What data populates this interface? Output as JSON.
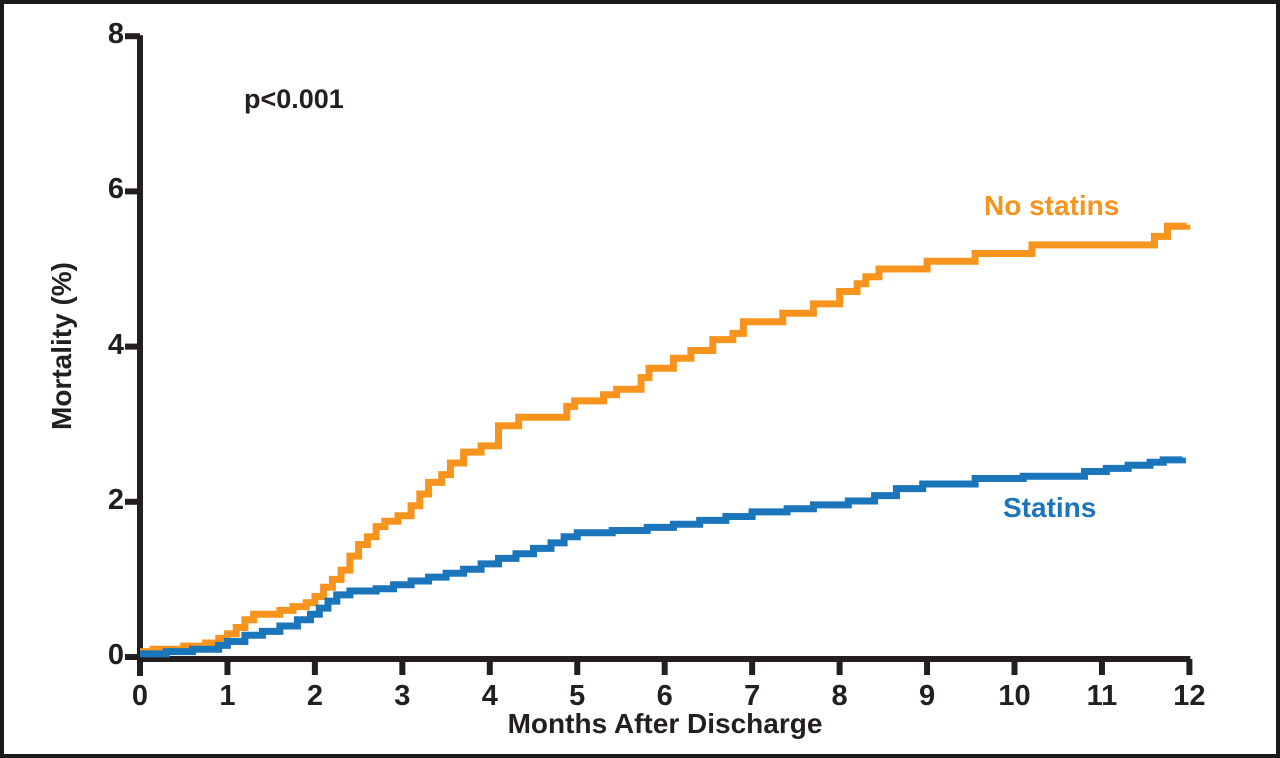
{
  "figure": {
    "p_value": "p<0.001",
    "x_axis_title": "Months After Discharge",
    "y_axis_title": "Mortality (%)"
  },
  "colors": {
    "no_statins": "#F7941E",
    "statins": "#1B75BB",
    "axis": "#231F20",
    "frame": "#1A1A1A",
    "background": "#FFFFFF"
  },
  "chart_data": {
    "type": "line",
    "subtype": "step-after",
    "title": "",
    "xlabel": "Months After Discharge",
    "ylabel": "Mortality (%)",
    "xlim": [
      0,
      12
    ],
    "ylim": [
      0,
      8
    ],
    "x_ticks": [
      "0",
      "1",
      "2",
      "3",
      "4",
      "5",
      "6",
      "7",
      "8",
      "9",
      "10",
      "11",
      "12"
    ],
    "x_tick_values": [
      0,
      1,
      2,
      3,
      4,
      5,
      6,
      7,
      8,
      9,
      10,
      11,
      12
    ],
    "y_ticks": [
      "0",
      "2",
      "4",
      "6",
      "8"
    ],
    "y_tick_values": [
      0,
      2,
      4,
      6,
      8
    ],
    "grid": false,
    "annotation": "p<0.001",
    "legend_position": "inline-right",
    "series": [
      {
        "name": "No statins",
        "color": "#F7941E",
        "points": [
          [
            0,
            0.07
          ],
          [
            0.15,
            0.1
          ],
          [
            0.5,
            0.14
          ],
          [
            0.75,
            0.18
          ],
          [
            0.9,
            0.24
          ],
          [
            1.0,
            0.3
          ],
          [
            1.1,
            0.38
          ],
          [
            1.2,
            0.48
          ],
          [
            1.3,
            0.55
          ],
          [
            1.6,
            0.6
          ],
          [
            1.75,
            0.65
          ],
          [
            1.9,
            0.7
          ],
          [
            2.0,
            0.78
          ],
          [
            2.1,
            0.9
          ],
          [
            2.2,
            1.0
          ],
          [
            2.3,
            1.12
          ],
          [
            2.4,
            1.3
          ],
          [
            2.5,
            1.45
          ],
          [
            2.6,
            1.55
          ],
          [
            2.7,
            1.68
          ],
          [
            2.8,
            1.75
          ],
          [
            2.95,
            1.82
          ],
          [
            3.1,
            1.95
          ],
          [
            3.2,
            2.1
          ],
          [
            3.3,
            2.25
          ],
          [
            3.45,
            2.35
          ],
          [
            3.55,
            2.5
          ],
          [
            3.7,
            2.64
          ],
          [
            3.9,
            2.72
          ],
          [
            4.1,
            2.98
          ],
          [
            4.33,
            3.09
          ],
          [
            4.88,
            3.23
          ],
          [
            4.97,
            3.3
          ],
          [
            5.3,
            3.38
          ],
          [
            5.45,
            3.45
          ],
          [
            5.73,
            3.6
          ],
          [
            5.82,
            3.72
          ],
          [
            6.1,
            3.85
          ],
          [
            6.3,
            3.95
          ],
          [
            6.55,
            4.09
          ],
          [
            6.78,
            4.17
          ],
          [
            6.9,
            4.32
          ],
          [
            7.35,
            4.43
          ],
          [
            7.7,
            4.55
          ],
          [
            8.0,
            4.71
          ],
          [
            8.2,
            4.81
          ],
          [
            8.3,
            4.9
          ],
          [
            8.45,
            5.0
          ],
          [
            9.0,
            5.1
          ],
          [
            9.55,
            5.2
          ],
          [
            10.2,
            5.31
          ],
          [
            11.6,
            5.42
          ],
          [
            11.75,
            5.55
          ],
          [
            11.97,
            5.57
          ]
        ]
      },
      {
        "name": "Statins",
        "color": "#1B75BB",
        "points": [
          [
            0,
            0.04
          ],
          [
            0.3,
            0.07
          ],
          [
            0.6,
            0.1
          ],
          [
            0.9,
            0.15
          ],
          [
            1.0,
            0.2
          ],
          [
            1.2,
            0.28
          ],
          [
            1.4,
            0.33
          ],
          [
            1.6,
            0.4
          ],
          [
            1.8,
            0.48
          ],
          [
            1.95,
            0.55
          ],
          [
            2.05,
            0.63
          ],
          [
            2.15,
            0.72
          ],
          [
            2.25,
            0.8
          ],
          [
            2.4,
            0.85
          ],
          [
            2.7,
            0.88
          ],
          [
            2.9,
            0.93
          ],
          [
            3.1,
            0.98
          ],
          [
            3.3,
            1.03
          ],
          [
            3.5,
            1.08
          ],
          [
            3.7,
            1.13
          ],
          [
            3.9,
            1.2
          ],
          [
            4.1,
            1.27
          ],
          [
            4.3,
            1.33
          ],
          [
            4.5,
            1.4
          ],
          [
            4.7,
            1.47
          ],
          [
            4.85,
            1.55
          ],
          [
            5.0,
            1.6
          ],
          [
            5.4,
            1.63
          ],
          [
            5.8,
            1.67
          ],
          [
            6.1,
            1.71
          ],
          [
            6.4,
            1.76
          ],
          [
            6.7,
            1.81
          ],
          [
            7.0,
            1.87
          ],
          [
            7.4,
            1.91
          ],
          [
            7.7,
            1.96
          ],
          [
            8.1,
            2.01
          ],
          [
            8.4,
            2.08
          ],
          [
            8.65,
            2.17
          ],
          [
            8.95,
            2.23
          ],
          [
            9.55,
            2.3
          ],
          [
            10.1,
            2.33
          ],
          [
            10.8,
            2.39
          ],
          [
            11.05,
            2.43
          ],
          [
            11.3,
            2.47
          ],
          [
            11.55,
            2.51
          ],
          [
            11.7,
            2.54
          ],
          [
            11.92,
            2.57
          ]
        ]
      }
    ]
  }
}
